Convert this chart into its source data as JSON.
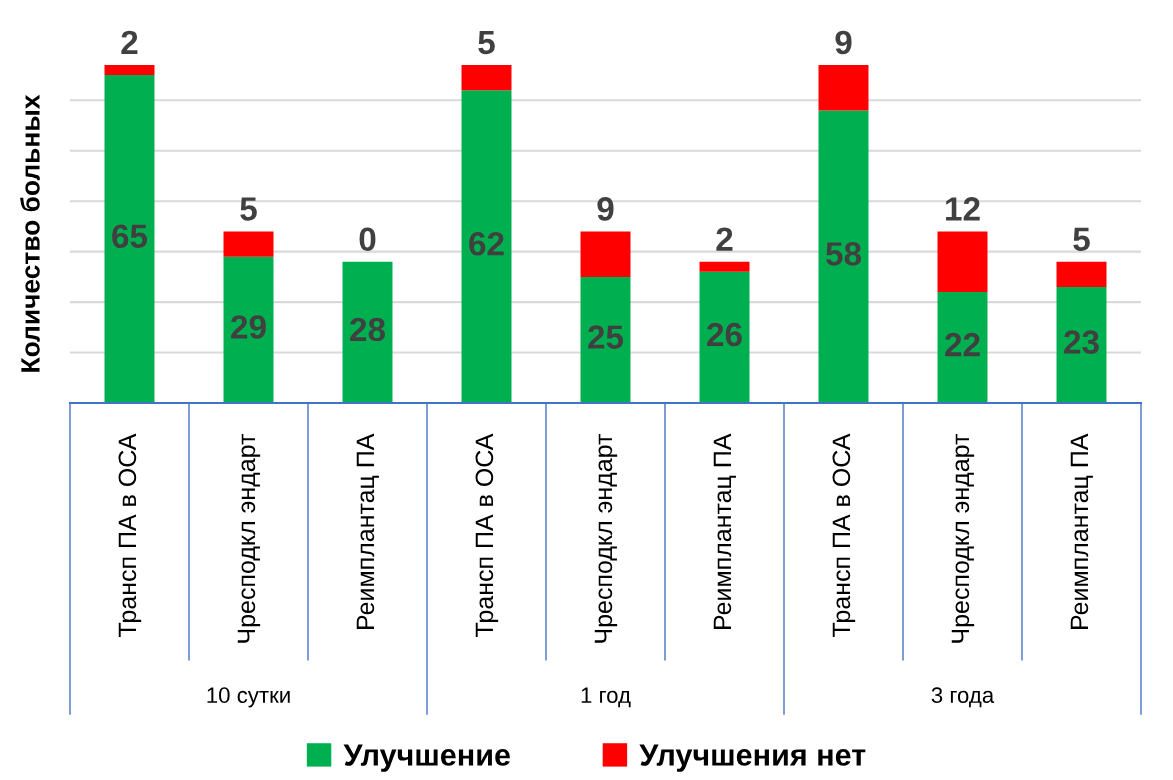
{
  "chart_data": {
    "type": "bar",
    "stacked": true,
    "data_labels": true,
    "ylabel": "Количество больных",
    "categories": [
      "Трансп ПА в ОСА",
      "Чресподкл эндарт",
      "Реимплантац ПА",
      "Трансп ПА в ОСА",
      "Чресподкл эндарт",
      "Реимплантац ПА",
      "Трансп ПА в ОСА",
      "Чресподкл эндарт",
      "Реимплантац ПА"
    ],
    "series": [
      {
        "name": "Улучшение",
        "color": "#00b050",
        "values": [
          65,
          29,
          28,
          62,
          25,
          26,
          58,
          22,
          23
        ]
      },
      {
        "name": "Улучшения нет",
        "color": "#ff0000",
        "values": [
          2,
          5,
          0,
          5,
          9,
          2,
          9,
          12,
          5
        ]
      }
    ],
    "annotations": [
      "10 сутки",
      "1 год",
      "3 года"
    ],
    "grid": "y",
    "legend": "bottom"
  }
}
